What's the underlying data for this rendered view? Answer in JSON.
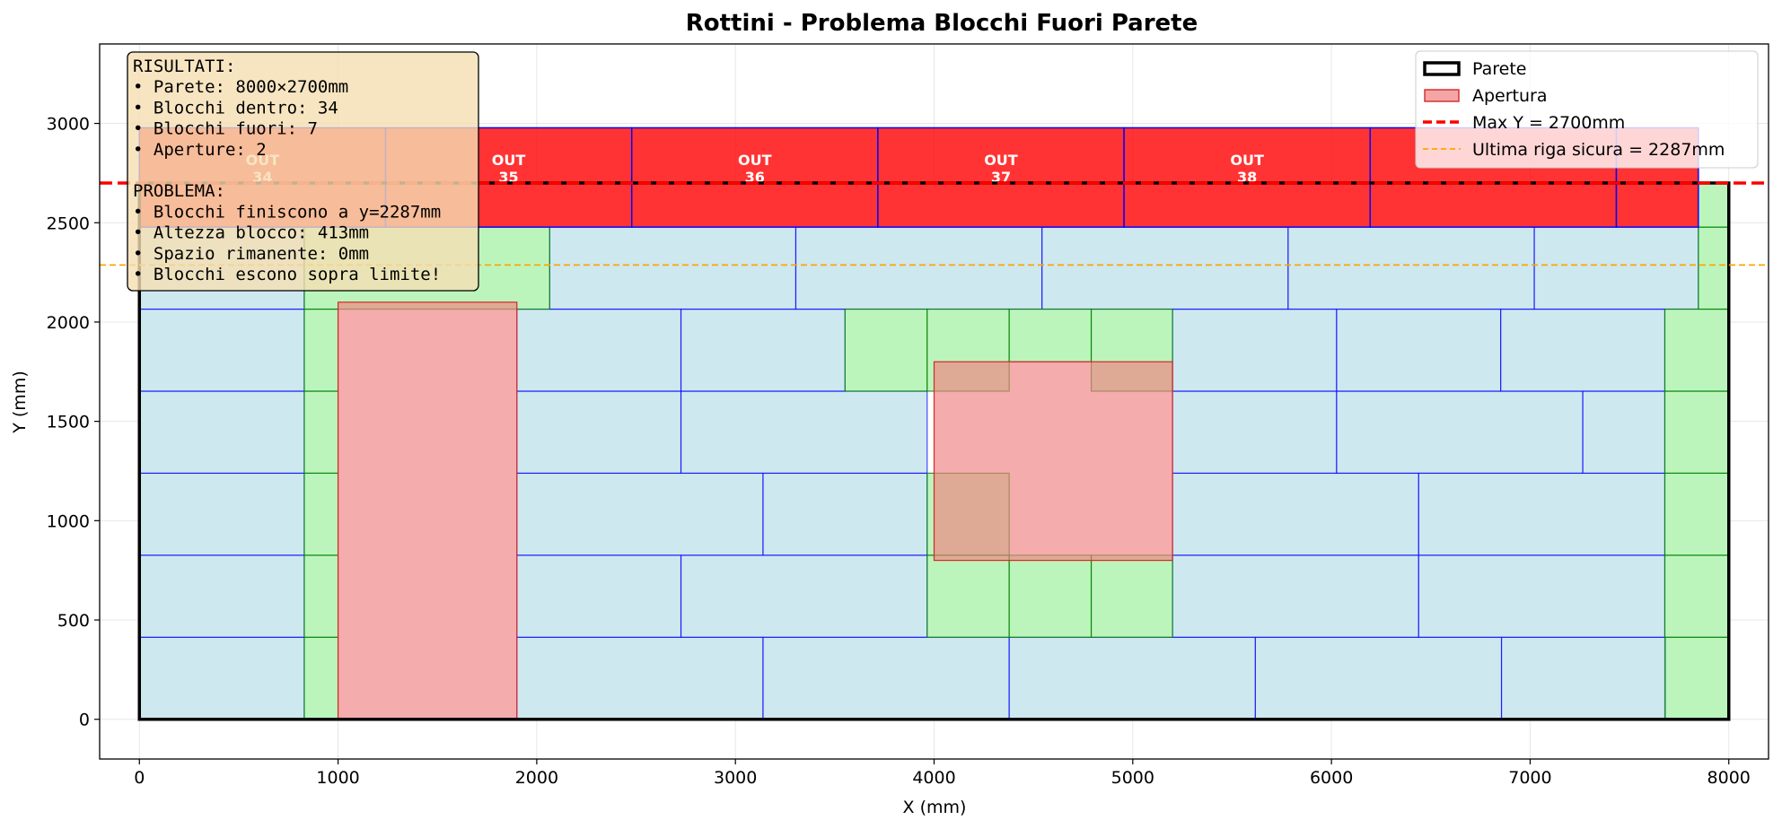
{
  "chart_data": {
    "type": "block-layout",
    "title": "Rottini - Problema Blocchi Fuori Parete",
    "xlabel": "X (mm)",
    "ylabel": "Y (mm)",
    "xlim": [
      -200,
      8200
    ],
    "ylim": [
      -200,
      3400
    ],
    "xticks": [
      0,
      1000,
      2000,
      3000,
      4000,
      5000,
      6000,
      7000,
      8000
    ],
    "yticks": [
      0,
      500,
      1000,
      1500,
      2000,
      2500,
      3000
    ],
    "grid": true,
    "wall": {
      "x": 0,
      "y": 0,
      "w": 8000,
      "h": 2700
    },
    "max_y": 2700,
    "safe_y": 2287,
    "colors": {
      "block_fill": "#add8e6",
      "block_stroke": "#0000ff",
      "green_fill": "#90ee90",
      "green_stroke": "#008000",
      "opening_fill": "#f08080",
      "opening_stroke": "#d62728",
      "out_fill": "#ff0000",
      "max_line": "#ff0000",
      "safe_line": "#ffa500"
    },
    "openings": [
      {
        "x": 1000,
        "y": 0,
        "w": 900,
        "h": 2100
      },
      {
        "x": 4000,
        "y": 800,
        "w": 1200,
        "h": 1000
      }
    ],
    "blocks_in": [
      {
        "x": 0,
        "y": 0,
        "w": 830,
        "h": 413
      },
      {
        "x": 1900,
        "y": 0,
        "w": 1239,
        "h": 413
      },
      {
        "x": 3139,
        "y": 0,
        "w": 1239,
        "h": 413
      },
      {
        "x": 4378,
        "y": 0,
        "w": 1239,
        "h": 413
      },
      {
        "x": 5617,
        "y": 0,
        "w": 1239,
        "h": 413
      },
      {
        "x": 6856,
        "y": 0,
        "w": 826,
        "h": 413
      },
      {
        "x": 0,
        "y": 413,
        "w": 830,
        "h": 413
      },
      {
        "x": 1900,
        "y": 413,
        "w": 826,
        "h": 413
      },
      {
        "x": 2726,
        "y": 413,
        "w": 1239,
        "h": 413
      },
      {
        "x": 5200,
        "y": 413,
        "w": 1239,
        "h": 413
      },
      {
        "x": 6439,
        "y": 413,
        "w": 1239,
        "h": 413
      },
      {
        "x": 0,
        "y": 826,
        "w": 830,
        "h": 413
      },
      {
        "x": 1900,
        "y": 826,
        "w": 1239,
        "h": 413
      },
      {
        "x": 3139,
        "y": 826,
        "w": 826,
        "h": 413
      },
      {
        "x": 5200,
        "y": 826,
        "w": 1239,
        "h": 413
      },
      {
        "x": 6439,
        "y": 826,
        "w": 1239,
        "h": 413
      },
      {
        "x": 0,
        "y": 1239,
        "w": 830,
        "h": 413
      },
      {
        "x": 1900,
        "y": 1239,
        "w": 826,
        "h": 413
      },
      {
        "x": 2726,
        "y": 1239,
        "w": 1239,
        "h": 413
      },
      {
        "x": 5200,
        "y": 1239,
        "w": 826,
        "h": 413
      },
      {
        "x": 6026,
        "y": 1239,
        "w": 1239,
        "h": 413
      },
      {
        "x": 7265,
        "y": 1239,
        "w": 413,
        "h": 413
      },
      {
        "x": 0,
        "y": 1652,
        "w": 830,
        "h": 413
      },
      {
        "x": 1900,
        "y": 1652,
        "w": 826,
        "h": 413
      },
      {
        "x": 2726,
        "y": 1652,
        "w": 826,
        "h": 413
      },
      {
        "x": 5200,
        "y": 1652,
        "w": 826,
        "h": 413
      },
      {
        "x": 6026,
        "y": 1652,
        "w": 826,
        "h": 413
      },
      {
        "x": 6852,
        "y": 1652,
        "w": 826,
        "h": 413
      },
      {
        "x": 2065,
        "y": 2065,
        "w": 1239,
        "h": 413
      },
      {
        "x": 3304,
        "y": 2065,
        "w": 1239,
        "h": 413
      },
      {
        "x": 4543,
        "y": 2065,
        "w": 1239,
        "h": 413
      },
      {
        "x": 5782,
        "y": 2065,
        "w": 1239,
        "h": 413
      },
      {
        "x": 7021,
        "y": 2065,
        "w": 826,
        "h": 413
      },
      {
        "x": 0,
        "y": 2065,
        "w": 830,
        "h": 413
      }
    ],
    "blocks_green": [
      {
        "x": 830,
        "y": 0,
        "w": 170,
        "h": 413
      },
      {
        "x": 830,
        "y": 413,
        "w": 170,
        "h": 413
      },
      {
        "x": 830,
        "y": 826,
        "w": 170,
        "h": 413
      },
      {
        "x": 830,
        "y": 1239,
        "w": 170,
        "h": 413
      },
      {
        "x": 830,
        "y": 1652,
        "w": 170,
        "h": 413
      },
      {
        "x": 830,
        "y": 2065,
        "w": 1235,
        "h": 413
      },
      {
        "x": 3965,
        "y": 413,
        "w": 413,
        "h": 413
      },
      {
        "x": 4378,
        "y": 413,
        "w": 413,
        "h": 413
      },
      {
        "x": 4791,
        "y": 413,
        "w": 409,
        "h": 413
      },
      {
        "x": 3965,
        "y": 826,
        "w": 413,
        "h": 413
      },
      {
        "x": 3552,
        "y": 1652,
        "w": 413,
        "h": 413
      },
      {
        "x": 3965,
        "y": 1652,
        "w": 413,
        "h": 413
      },
      {
        "x": 4378,
        "y": 1800,
        "w": 413,
        "h": 265
      },
      {
        "x": 4791,
        "y": 1652,
        "w": 409,
        "h": 413
      },
      {
        "x": 7678,
        "y": 0,
        "w": 322,
        "h": 413
      },
      {
        "x": 7678,
        "y": 413,
        "w": 322,
        "h": 413
      },
      {
        "x": 7678,
        "y": 826,
        "w": 322,
        "h": 413
      },
      {
        "x": 7678,
        "y": 1239,
        "w": 322,
        "h": 413
      },
      {
        "x": 7678,
        "y": 1652,
        "w": 322,
        "h": 413
      },
      {
        "x": 7847,
        "y": 2065,
        "w": 153,
        "h": 413
      },
      {
        "x": 7847,
        "y": 2478,
        "w": 153,
        "h": 222
      }
    ],
    "blocks_out": [
      {
        "x": 0,
        "y": 2478,
        "w": 1239,
        "h": 500,
        "label": "OUT\n34"
      },
      {
        "x": 1239,
        "y": 2478,
        "w": 1239,
        "h": 500,
        "label": "OUT\n35"
      },
      {
        "x": 2478,
        "y": 2478,
        "w": 1239,
        "h": 500,
        "label": "OUT\n36"
      },
      {
        "x": 3717,
        "y": 2478,
        "w": 1239,
        "h": 500,
        "label": "OUT\n37"
      },
      {
        "x": 4956,
        "y": 2478,
        "w": 1239,
        "h": 500,
        "label": "OUT\n38"
      },
      {
        "x": 6195,
        "y": 2478,
        "w": 1239,
        "h": 500,
        "label": ""
      },
      {
        "x": 7434,
        "y": 2478,
        "w": 413,
        "h": 500,
        "label": ""
      }
    ],
    "legend": [
      {
        "label": "Parete",
        "kind": "wall"
      },
      {
        "label": "Apertura",
        "kind": "opening"
      },
      {
        "label": "Max Y = 2700mm",
        "kind": "max"
      },
      {
        "label": "Ultima riga sicura = 2287mm",
        "kind": "safe"
      }
    ],
    "legend_position": "top-right",
    "info_box": [
      "RISULTATI:",
      "• Parete: 8000×2700mm",
      "• Blocchi dentro: 34",
      "• Blocchi fuori: 7",
      "• Aperture: 2",
      "",
      "PROBLEMA:",
      "• Blocchi finiscono a y=2287mm",
      "• Altezza blocco: 413mm",
      "• Spazio rimanente: 0mm",
      "• Blocchi escono sopra limite!"
    ]
  }
}
